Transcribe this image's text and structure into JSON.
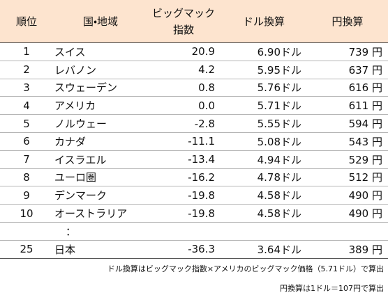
{
  "table": {
    "header": [
      "順位",
      "国・地域",
      [
        "ビッグマック",
        "指数"
      ],
      "ドル換算",
      "円換算"
    ],
    "rows": [
      [
        "1",
        "スイス",
        "20.9",
        "6.90ドル",
        "739 円"
      ],
      [
        "2",
        "レバノン",
        "4.2",
        "5.95ドル",
        "637 円"
      ],
      [
        "3",
        "スウェーデン",
        "0.8",
        "5.76ドル",
        "616 円"
      ],
      [
        "4",
        "アメリカ",
        "0.0",
        "5.71ドル",
        "611 円"
      ],
      [
        "5",
        "ノルウェー",
        "-2.8",
        "5.55ドル",
        "594 円"
      ],
      [
        "6",
        "カナダ",
        "-11.1",
        "5.08ドル",
        "543 円"
      ],
      [
        "7",
        "イスラエル",
        "-13.4",
        "4.94ドル",
        "529 円"
      ],
      [
        "8",
        "ユーロ圏",
        "-16.2",
        "4.78ドル",
        "512 円"
      ],
      [
        "9",
        "デンマーク",
        "-19.8",
        "4.58ドル",
        "490 円"
      ],
      [
        "10",
        "オーストラリア",
        "-19.8",
        "4.58ドル",
        "490 円"
      ]
    ],
    "ellipsis": "：",
    "last_row": [
      "25",
      "日本",
      "-36.3",
      "3.64ドル",
      "389 円"
    ]
  },
  "notes": [
    "ドル換算はビッグマック指数×アメリカのビッグマック価格（5.71ドル）で算出",
    "円換算は1ドル＝107円で算出"
  ]
}
